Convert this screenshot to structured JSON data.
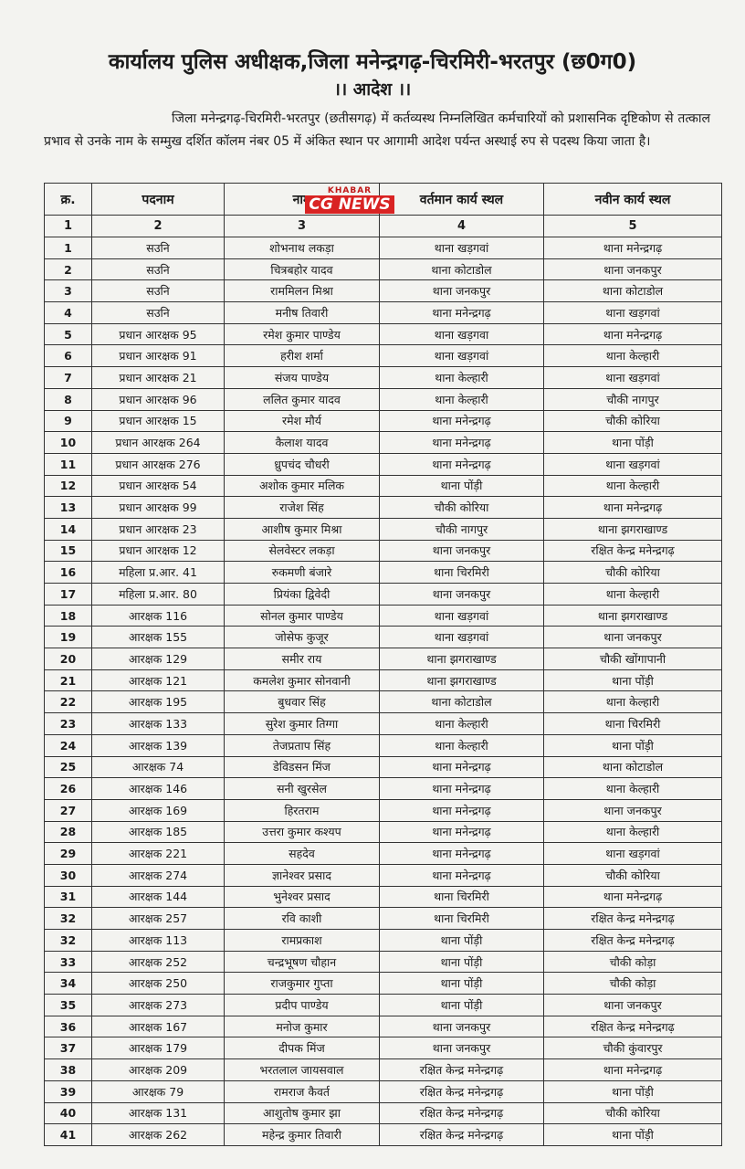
{
  "header": {
    "office": "कार्यालय पुलिस अधीक्षक,जिला मनेन्द्रगढ़-चिरमिरी-भरतपुर (छ0ग0)",
    "order": "।। आदेश ।।",
    "paragraph": "जिला मनेन्द्रगढ़-चिरमिरी-भरतपुर (छतीसगढ़) में कर्तव्यस्थ निम्नलिखित कर्मचारियों को प्रशासनिक दृष्टिकोण से तत्काल प्रभाव से उनके नाम के सम्मुख दर्शित कॉलम नंबर 05 में अंकित स्थान पर आगामी आदेश पर्यन्त अस्थाई रुप से पदस्थ किया जाता है।"
  },
  "watermark": {
    "top": "KHABAR",
    "main": "CG NEWS"
  },
  "table": {
    "columns": [
      "क्र.",
      "पदनाम",
      "नाम",
      "वर्तमान कार्य स्थल",
      "नवीन कार्य स्थल"
    ],
    "column_numbers": [
      "1",
      "2",
      "3",
      "4",
      "5"
    ],
    "rows": [
      [
        "1",
        "सउनि",
        "शोभनाथ लकड़ा",
        "थाना खड़गवां",
        "थाना मनेन्द्रगढ़"
      ],
      [
        "2",
        "सउनि",
        "चित्रबहोर यादव",
        "थाना कोटाडोल",
        "थाना जनकपुर"
      ],
      [
        "3",
        "सउनि",
        "राममिलन मिश्रा",
        "थाना जनकपुर",
        "थाना कोटाडोल"
      ],
      [
        "4",
        "सउनि",
        "मनीष तिवारी",
        "थाना मनेन्द्रगढ़",
        "थाना खड़गवां"
      ],
      [
        "5",
        "प्रधान आरक्षक 95",
        "रमेश कुमार पाण्डेय",
        "थाना खड़गवा",
        "थाना मनेन्द्रगढ़"
      ],
      [
        "6",
        "प्रधान आरक्षक 91",
        "हरीश शर्मा",
        "थाना खड़गवां",
        "थाना केल्हारी"
      ],
      [
        "7",
        "प्रधान आरक्षक 21",
        "संजय पाण्डेय",
        "थाना केल्हारी",
        "थाना खड़गवां"
      ],
      [
        "8",
        "प्रधान आरक्षक 96",
        "ललित कुमार यादव",
        "थाना केल्हारी",
        "चौकी नागपुर"
      ],
      [
        "9",
        "प्रधान आरक्षक 15",
        "रमेश मौर्य",
        "थाना मनेन्द्रगढ़",
        "चौकी कोरिया"
      ],
      [
        "10",
        "प्रधान आरक्षक 264",
        "कैलाश यादव",
        "थाना मनेन्द्रगढ़",
        "थाना पोंड़ी"
      ],
      [
        "11",
        "प्रधान आरक्षक 276",
        "ध्रुपचंद चौधरी",
        "थाना मनेन्द्रगढ़",
        "थाना खड़गवां"
      ],
      [
        "12",
        "प्रधान आरक्षक 54",
        "अशोक कुमार मलिक",
        "थाना पोंड़ी",
        "थाना केल्हारी"
      ],
      [
        "13",
        "प्रधान आरक्षक 99",
        "राजेश सिंह",
        "चौकी कोरिया",
        "थाना मनेन्द्रगढ़"
      ],
      [
        "14",
        "प्रधान आरक्षक 23",
        "आशीष कुमार मिश्रा",
        "चौकी नागपुर",
        "थाना झगराखाण्ड"
      ],
      [
        "15",
        "प्रधान आरक्षक 12",
        "सेलवेस्टर लकड़ा",
        "थाना जनकपुर",
        "रक्षित केन्द्र मनेन्द्रगढ़"
      ],
      [
        "16",
        "महिला प्र.आर. 41",
        "रुकमणी बंजारे",
        "थाना चिरमिरी",
        "चौकी कोरिया"
      ],
      [
        "17",
        "महिला प्र.आर. 80",
        "प्रियंका द्विवेदी",
        "थाना जनकपुर",
        "थाना केल्हारी"
      ],
      [
        "18",
        "आरक्षक 116",
        "सोनल कुमार पाण्डेय",
        "थाना खड़गवां",
        "थाना झगराखाण्ड"
      ],
      [
        "19",
        "आरक्षक 155",
        "जोसेफ कुजूर",
        "थाना खड़गवां",
        "थाना जनकपुर"
      ],
      [
        "20",
        "आरक्षक 129",
        "समीर राय",
        "थाना झगराखाण्ड",
        "चौकी खोंगापानी"
      ],
      [
        "21",
        "आरक्षक 121",
        "कमलेश कुमार सोनवानी",
        "थाना झगराखाण्ड",
        "थाना पोंड़ी"
      ],
      [
        "22",
        "आरक्षक 195",
        "बुधवार सिंह",
        "थाना कोटाडोल",
        "थाना केल्हारी"
      ],
      [
        "23",
        "आरक्षक 133",
        "सुरेश कुमार तिग्गा",
        "थाना केल्हारी",
        "थाना चिरमिरी"
      ],
      [
        "24",
        "आरक्षक 139",
        "तेजप्रताप सिंह",
        "थाना केल्हारी",
        "थाना पोंड़ी"
      ],
      [
        "25",
        "आरक्षक 74",
        "डेविडसन मिंज",
        "थाना मनेन्द्रगढ़",
        "थाना कोटाडोल"
      ],
      [
        "26",
        "आरक्षक 146",
        "सनी खुरसेल",
        "थाना मनेन्द्रगढ़",
        "थाना केल्हारी"
      ],
      [
        "27",
        "आरक्षक 169",
        "हिरतराम",
        "थाना मनेन्द्रगढ़",
        "थाना जनकपुर"
      ],
      [
        "28",
        "आरक्षक 185",
        "उत्तरा कुमार कश्यप",
        "थाना मनेन्द्रगढ़",
        "थाना केल्हारी"
      ],
      [
        "29",
        "आरक्षक 221",
        "सहदेव",
        "थाना मनेन्द्रगढ़",
        "थाना खड़गवां"
      ],
      [
        "30",
        "आरक्षक 274",
        "ज्ञानेश्वर प्रसाद",
        "थाना मनेन्द्रगढ़",
        "चौकी कोरिया"
      ],
      [
        "31",
        "आरक्षक 144",
        "भुनेश्वर प्रसाद",
        "थाना चिरमिरी",
        "थाना मनेन्द्रगढ़"
      ],
      [
        "32",
        "आरक्षक 257",
        "रवि काशी",
        "थाना चिरमिरी",
        "रक्षित केन्द्र मनेन्द्रगढ़"
      ],
      [
        "32",
        "आरक्षक 113",
        "रामप्रकाश",
        "थाना पोंड़ी",
        "रक्षित केन्द्र मनेन्द्रगढ़"
      ],
      [
        "33",
        "आरक्षक 252",
        "चन्द्रभूषण चौहान",
        "थाना पोंड़ी",
        "चौकी कोड़ा"
      ],
      [
        "34",
        "आरक्षक 250",
        "राजकुमार गुप्ता",
        "थाना पोंड़ी",
        "चौकी कोड़ा"
      ],
      [
        "35",
        "आरक्षक 273",
        "प्रदीप पाण्डेय",
        "थाना पोंड़ी",
        "थाना जनकपुर"
      ],
      [
        "36",
        "आरक्षक 167",
        "मनोज कुमार",
        "थाना जनकपुर",
        "रक्षित केन्द्र मनेन्द्रगढ़"
      ],
      [
        "37",
        "आरक्षक 179",
        "दीपक मिंज",
        "थाना जनकपुर",
        "चौकी कुंवारपुर"
      ],
      [
        "38",
        "आरक्षक 209",
        "भरतलाल जायसवाल",
        "रक्षित केन्द्र मनेन्द्रगढ़",
        "थाना मनेन्द्रगढ़"
      ],
      [
        "39",
        "आरक्षक 79",
        "रामराज कैवर्त",
        "रक्षित केन्द्र मनेन्द्रगढ़",
        "थाना पोंड़ी"
      ],
      [
        "40",
        "आरक्षक 131",
        "आशुतोष कुमार झा",
        "रक्षित केन्द्र मनेन्द्रगढ़",
        "चौकी कोरिया"
      ],
      [
        "41",
        "आरक्षक 262",
        "महेन्द्र कुमार तिवारी",
        "रक्षित केन्द्र मनेन्द्रगढ़",
        "थाना पोंड़ी"
      ]
    ]
  }
}
